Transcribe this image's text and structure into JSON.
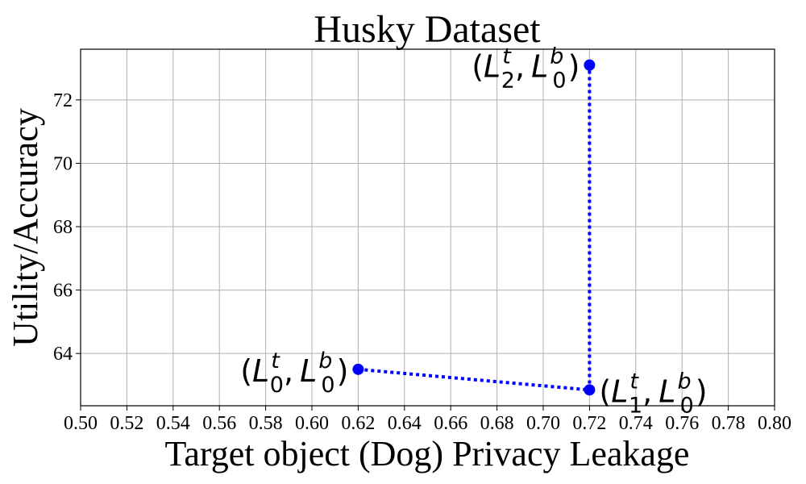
{
  "chart_data": {
    "type": "line",
    "title": "Husky Dataset",
    "xlabel": "Target object (Dog) Privacy Leakage",
    "ylabel": "Utility/Accuracy",
    "xlim": [
      0.5,
      0.8
    ],
    "ylim": [
      62.35,
      73.6
    ],
    "x_ticks": [
      0.5,
      0.52,
      0.54,
      0.56,
      0.58,
      0.6,
      0.62,
      0.64,
      0.66,
      0.68,
      0.7,
      0.72,
      0.74,
      0.76,
      0.78,
      0.8
    ],
    "x_tick_labels": [
      "0.50",
      "0.52",
      "0.54",
      "0.56",
      "0.58",
      "0.60",
      "0.62",
      "0.64",
      "0.66",
      "0.68",
      "0.70",
      "0.72",
      "0.74",
      "0.76",
      "0.78",
      "0.80"
    ],
    "y_ticks": [
      64,
      66,
      68,
      70,
      72
    ],
    "y_tick_labels": [
      "64",
      "66",
      "68",
      "70",
      "72"
    ],
    "grid": true,
    "series": [
      {
        "color": "#0000ff",
        "line_style": "dotted",
        "marker": "circle",
        "points": [
          {
            "x": 0.62,
            "y": 63.5,
            "label": {
              "L": "L",
              "t_sub": "0",
              "comma": ",",
              "b_sub": "0",
              "sup_t": "t",
              "sup_b": "b",
              "open": "(",
              "close": ")"
            },
            "label_side": "left"
          },
          {
            "x": 0.72,
            "y": 62.85,
            "label": {
              "L": "L",
              "t_sub": "1",
              "comma": ",",
              "b_sub": "0",
              "sup_t": "t",
              "sup_b": "b",
              "open": "(",
              "close": ")"
            },
            "label_side": "right"
          },
          {
            "x": 0.72,
            "y": 73.1,
            "label": {
              "L": "L",
              "t_sub": "2",
              "comma": ",",
              "b_sub": "0",
              "sup_t": "t",
              "sup_b": "b",
              "open": "(",
              "close": ")"
            },
            "label_side": "left"
          }
        ]
      }
    ]
  }
}
